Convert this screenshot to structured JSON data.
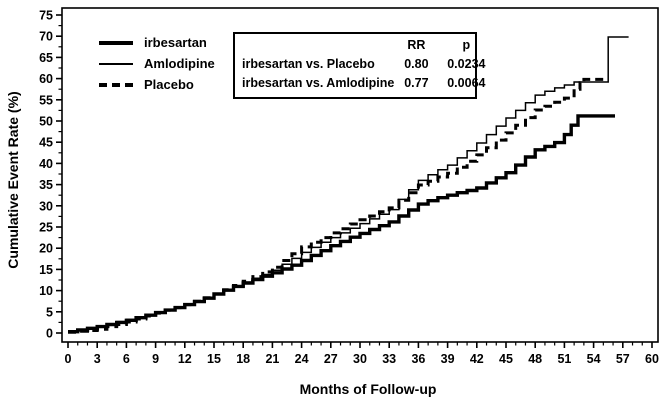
{
  "figure": {
    "stats_box": {
      "rr_header": "RR",
      "p_header": "p",
      "rows": [
        {
          "label": "irbesartan vs. Placebo",
          "rr": "0.80",
          "p": "0.0234"
        },
        {
          "label": "irbesartan vs. Amlodipine",
          "rr": "0.77",
          "p": "0.0064"
        }
      ]
    }
  },
  "chart_data": {
    "type": "line",
    "subtype": "step-cumulative-incidence",
    "title": "",
    "xlabel": "Months of Follow-up",
    "ylabel": "Cumulative Event Rate (%)",
    "xlim": [
      0,
      60
    ],
    "ylim": [
      0,
      75
    ],
    "x_tick_step": 3,
    "x_minor_step": 1,
    "y_tick_step": 5,
    "y_minor_step": 2.5,
    "grid": false,
    "legend_position": "upper-left-inside",
    "line_color": "#000000",
    "series": [
      {
        "name": "Amlodipine",
        "line": "thin-solid",
        "points": [
          [
            0,
            0.3
          ],
          [
            1,
            0.8
          ],
          [
            2,
            1.2
          ],
          [
            3,
            1.7
          ],
          [
            4,
            2.2
          ],
          [
            5,
            2.7
          ],
          [
            6,
            3.2
          ],
          [
            7,
            3.8
          ],
          [
            8,
            4.3
          ],
          [
            9,
            4.9
          ],
          [
            10,
            5.5
          ],
          [
            11,
            6.1
          ],
          [
            12,
            6.8
          ],
          [
            13,
            7.6
          ],
          [
            14,
            8.4
          ],
          [
            15,
            9.3
          ],
          [
            16,
            10.2
          ],
          [
            17,
            11.1
          ],
          [
            18,
            12.0
          ],
          [
            19,
            12.9
          ],
          [
            20,
            13.8
          ],
          [
            21,
            14.8
          ],
          [
            22,
            16.2
          ],
          [
            23,
            17.6
          ],
          [
            24,
            19.0
          ],
          [
            25,
            20.2
          ],
          [
            26,
            21.4
          ],
          [
            27,
            22.5
          ],
          [
            28,
            23.6
          ],
          [
            29,
            24.7
          ],
          [
            30,
            25.8
          ],
          [
            31,
            26.9
          ],
          [
            32,
            28.0
          ],
          [
            33,
            29.1
          ],
          [
            34,
            31.5
          ],
          [
            35,
            33.8
          ],
          [
            36,
            36.0
          ],
          [
            37,
            37.3
          ],
          [
            38,
            38.5
          ],
          [
            39,
            39.6
          ],
          [
            40,
            41.3
          ],
          [
            41,
            43.0
          ],
          [
            42,
            44.8
          ],
          [
            43,
            46.8
          ],
          [
            44,
            48.8
          ],
          [
            45,
            50.7
          ],
          [
            46,
            52.5
          ],
          [
            47,
            54.3
          ],
          [
            48,
            56.1
          ],
          [
            49,
            57.0
          ],
          [
            50,
            57.8
          ],
          [
            51,
            58.5
          ],
          [
            52,
            59.2
          ],
          [
            55.4,
            59.2
          ],
          [
            55.5,
            69.8
          ],
          [
            57.6,
            69.8
          ]
        ]
      },
      {
        "name": "Placebo",
        "line": "dashed",
        "points": [
          [
            0,
            0.2
          ],
          [
            1,
            0.4
          ],
          [
            2,
            0.6
          ],
          [
            3,
            0.9
          ],
          [
            4,
            1.5
          ],
          [
            5,
            2.0
          ],
          [
            6,
            2.6
          ],
          [
            7,
            3.3
          ],
          [
            8,
            4.0
          ],
          [
            9,
            4.7
          ],
          [
            10,
            5.4
          ],
          [
            11,
            6.0
          ],
          [
            12,
            6.7
          ],
          [
            13,
            7.5
          ],
          [
            14,
            8.3
          ],
          [
            15,
            9.2
          ],
          [
            16,
            10.2
          ],
          [
            17,
            11.2
          ],
          [
            18,
            12.2
          ],
          [
            19,
            13.3
          ],
          [
            20,
            14.4
          ],
          [
            21,
            15.5
          ],
          [
            22,
            17.1
          ],
          [
            23,
            18.7
          ],
          [
            24,
            20.3
          ],
          [
            25,
            21.4
          ],
          [
            26,
            22.5
          ],
          [
            27,
            23.6
          ],
          [
            28,
            24.6
          ],
          [
            29,
            25.7
          ],
          [
            30,
            26.7
          ],
          [
            31,
            27.6
          ],
          [
            32,
            28.6
          ],
          [
            33,
            29.5
          ],
          [
            34,
            31.3
          ],
          [
            35,
            33.1
          ],
          [
            36,
            34.9
          ],
          [
            37,
            35.8
          ],
          [
            38,
            36.8
          ],
          [
            39,
            37.7
          ],
          [
            40,
            39.1
          ],
          [
            41,
            40.5
          ],
          [
            42,
            42.0
          ],
          [
            43,
            43.7
          ],
          [
            44,
            45.5
          ],
          [
            45,
            47.2
          ],
          [
            46,
            49.0
          ],
          [
            47,
            50.8
          ],
          [
            48,
            52.6
          ],
          [
            49,
            53.5
          ],
          [
            50,
            54.4
          ],
          [
            51,
            55.4
          ],
          [
            52,
            57.5
          ],
          [
            52.6,
            59.0
          ],
          [
            53,
            59.8
          ],
          [
            55,
            59.8
          ]
        ]
      },
      {
        "name": "irbesartan",
        "line": "thick-solid",
        "points": [
          [
            0,
            0.3
          ],
          [
            1,
            0.7
          ],
          [
            2,
            1.1
          ],
          [
            3,
            1.5
          ],
          [
            4,
            2.0
          ],
          [
            5,
            2.5
          ],
          [
            6,
            3.0
          ],
          [
            7,
            3.6
          ],
          [
            8,
            4.2
          ],
          [
            9,
            4.8
          ],
          [
            10,
            5.4
          ],
          [
            11,
            6.0
          ],
          [
            12,
            6.7
          ],
          [
            13,
            7.4
          ],
          [
            14,
            8.2
          ],
          [
            15,
            9.2
          ],
          [
            16,
            10.1
          ],
          [
            17,
            11.0
          ],
          [
            18,
            11.8
          ],
          [
            19,
            12.6
          ],
          [
            20,
            13.4
          ],
          [
            21,
            14.2
          ],
          [
            22,
            15.1
          ],
          [
            23,
            16.0
          ],
          [
            24,
            17.1
          ],
          [
            25,
            18.3
          ],
          [
            26,
            19.4
          ],
          [
            27,
            20.6
          ],
          [
            28,
            21.6
          ],
          [
            29,
            22.6
          ],
          [
            30,
            23.5
          ],
          [
            31,
            24.4
          ],
          [
            32,
            25.3
          ],
          [
            33,
            26.2
          ],
          [
            34,
            27.6
          ],
          [
            35,
            29.0
          ],
          [
            36,
            30.4
          ],
          [
            37,
            31.2
          ],
          [
            38,
            31.9
          ],
          [
            39,
            32.5
          ],
          [
            40,
            33.1
          ],
          [
            41,
            33.6
          ],
          [
            42,
            34.2
          ],
          [
            43,
            35.4
          ],
          [
            44,
            36.6
          ],
          [
            45,
            37.8
          ],
          [
            46,
            39.6
          ],
          [
            47,
            41.5
          ],
          [
            48,
            43.2
          ],
          [
            49,
            44.0
          ],
          [
            50,
            44.9
          ],
          [
            51,
            46.8
          ],
          [
            51.7,
            49.0
          ],
          [
            52.4,
            51.2
          ],
          [
            56.2,
            51.2
          ]
        ]
      }
    ],
    "legend_order": [
      "irbesartan",
      "Amlodipine",
      "Placebo"
    ]
  }
}
